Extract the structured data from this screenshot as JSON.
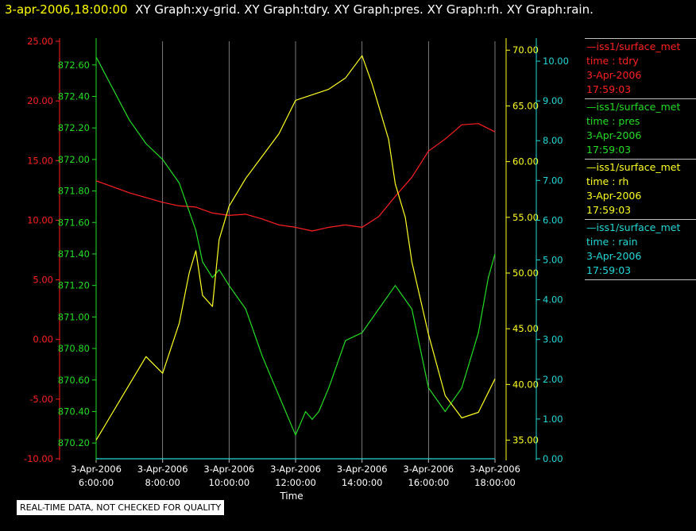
{
  "header": {
    "timestamp": "3-apr-2006,18:00:00",
    "graphs": "XY Graph:xy-grid.  XY Graph:tdry.  XY Graph:pres.  XY Graph:rh.  XY Graph:rain."
  },
  "note": "REAL-TIME DATA, NOT CHECKED FOR QUALITY",
  "legend": [
    {
      "source": "iss1/surface_met",
      "field": "time : tdry",
      "date": "3-Apr-2006",
      "time": "17:59:03",
      "color": "#ff2020"
    },
    {
      "source": "iss1/surface_met",
      "field": "time : pres",
      "date": "3-Apr-2006",
      "time": "17:59:03",
      "color": "#22dd22"
    },
    {
      "source": "iss1/surface_met",
      "field": "time : rh",
      "date": "3-Apr-2006",
      "time": "17:59:03",
      "color": "#ffff22"
    },
    {
      "source": "iss1/surface_met",
      "field": "time : rain",
      "date": "3-Apr-2006",
      "time": "17:59:03",
      "color": "#22d8d8"
    }
  ],
  "chart_data": {
    "type": "line",
    "xlabel": "Time",
    "x_ticks": [
      {
        "date": "3-Apr-2006",
        "time": "6:00:00"
      },
      {
        "date": "3-Apr-2006",
        "time": "8:00:00"
      },
      {
        "date": "3-Apr-2006",
        "time": "10:00:00"
      },
      {
        "date": "3-Apr-2006",
        "time": "12:00:00"
      },
      {
        "date": "3-Apr-2006",
        "time": "14:00:00"
      },
      {
        "date": "3-Apr-2006",
        "time": "16:00:00"
      },
      {
        "date": "3-Apr-2006",
        "time": "18:00:00"
      }
    ],
    "xlim": [
      6.0,
      18.0
    ],
    "grid": "vertical",
    "axes": [
      {
        "name": "tdry",
        "color": "#ff2020",
        "range": [
          -10,
          25
        ],
        "ticks": [
          "-10.00",
          "-5.00",
          "0.00",
          "5.00",
          "10.00",
          "15.00",
          "20.00",
          "25.00"
        ]
      },
      {
        "name": "pres",
        "color": "#22dd22",
        "range": [
          870.1,
          872.75
        ],
        "ticks": [
          "870.20",
          "870.40",
          "870.60",
          "870.80",
          "871.00",
          "871.20",
          "871.40",
          "871.60",
          "871.80",
          "872.00",
          "872.20",
          "872.40",
          "872.60"
        ]
      },
      {
        "name": "rh",
        "color": "#ffff22",
        "range": [
          33.33,
          70.8
        ],
        "ticks": [
          "35.00",
          "40.00",
          "45.00",
          "50.00",
          "55.00",
          "60.00",
          "65.00",
          "70.00"
        ]
      },
      {
        "name": "rain",
        "color": "#22d8d8",
        "range": [
          0,
          10.5
        ],
        "ticks": [
          "0.00",
          "1.00",
          "2.00",
          "3.00",
          "4.00",
          "5.00",
          "6.00",
          "7.00",
          "8.00",
          "9.00",
          "10.00"
        ]
      }
    ],
    "series": [
      {
        "name": "tdry",
        "color": "#ff2020",
        "x": [
          6.0,
          6.5,
          7.0,
          7.5,
          8.0,
          8.5,
          9.0,
          9.5,
          10.0,
          10.5,
          11.0,
          11.5,
          12.0,
          12.5,
          13.0,
          13.5,
          14.0,
          14.5,
          15.0,
          15.5,
          16.0,
          16.5,
          17.0,
          17.5,
          18.0
        ],
        "y": [
          13.3,
          12.8,
          12.3,
          11.9,
          11.5,
          11.2,
          11.1,
          10.6,
          10.4,
          10.5,
          10.1,
          9.6,
          9.4,
          9.1,
          9.4,
          9.6,
          9.4,
          10.3,
          12.0,
          13.6,
          15.8,
          16.8,
          18.0,
          18.1,
          17.4
        ]
      },
      {
        "name": "pres",
        "color": "#22dd22",
        "x": [
          6.0,
          6.5,
          7.0,
          7.5,
          8.0,
          8.5,
          9.0,
          9.2,
          9.5,
          9.7,
          10.0,
          10.5,
          11.0,
          11.3,
          11.6,
          12.0,
          12.3,
          12.5,
          12.7,
          13.0,
          13.5,
          14.0,
          14.5,
          15.0,
          15.5,
          15.8,
          16.0,
          16.5,
          17.0,
          17.5,
          17.8,
          18.0
        ],
        "y": [
          872.65,
          872.45,
          872.25,
          872.1,
          872.0,
          871.85,
          871.55,
          871.35,
          871.25,
          871.3,
          871.2,
          871.05,
          870.75,
          870.6,
          870.45,
          870.25,
          870.4,
          870.35,
          870.4,
          870.55,
          870.85,
          870.9,
          871.05,
          871.2,
          871.05,
          870.75,
          870.55,
          870.4,
          870.55,
          870.9,
          871.25,
          871.4
        ]
      },
      {
        "name": "rh",
        "color": "#ffff22",
        "x": [
          6.0,
          6.5,
          7.0,
          7.5,
          8.0,
          8.5,
          8.8,
          9.0,
          9.2,
          9.5,
          9.7,
          10.0,
          10.5,
          11.0,
          11.5,
          12.0,
          12.5,
          13.0,
          13.5,
          14.0,
          14.3,
          14.8,
          15.0,
          15.3,
          15.5,
          16.0,
          16.5,
          17.0,
          17.5,
          18.0
        ],
        "y": [
          35.0,
          37.5,
          40.0,
          42.5,
          41.0,
          45.5,
          50.0,
          52.0,
          48.0,
          47.0,
          53.0,
          56.0,
          58.5,
          60.5,
          62.5,
          65.5,
          66.0,
          66.5,
          67.5,
          69.5,
          67.0,
          62.0,
          58.0,
          55.0,
          51.0,
          44.5,
          39.0,
          37.0,
          37.5,
          40.5
        ]
      },
      {
        "name": "rain",
        "color": "#22d8d8",
        "x": [
          6.0,
          18.0
        ],
        "y": [
          0.0,
          0.0
        ]
      }
    ]
  }
}
